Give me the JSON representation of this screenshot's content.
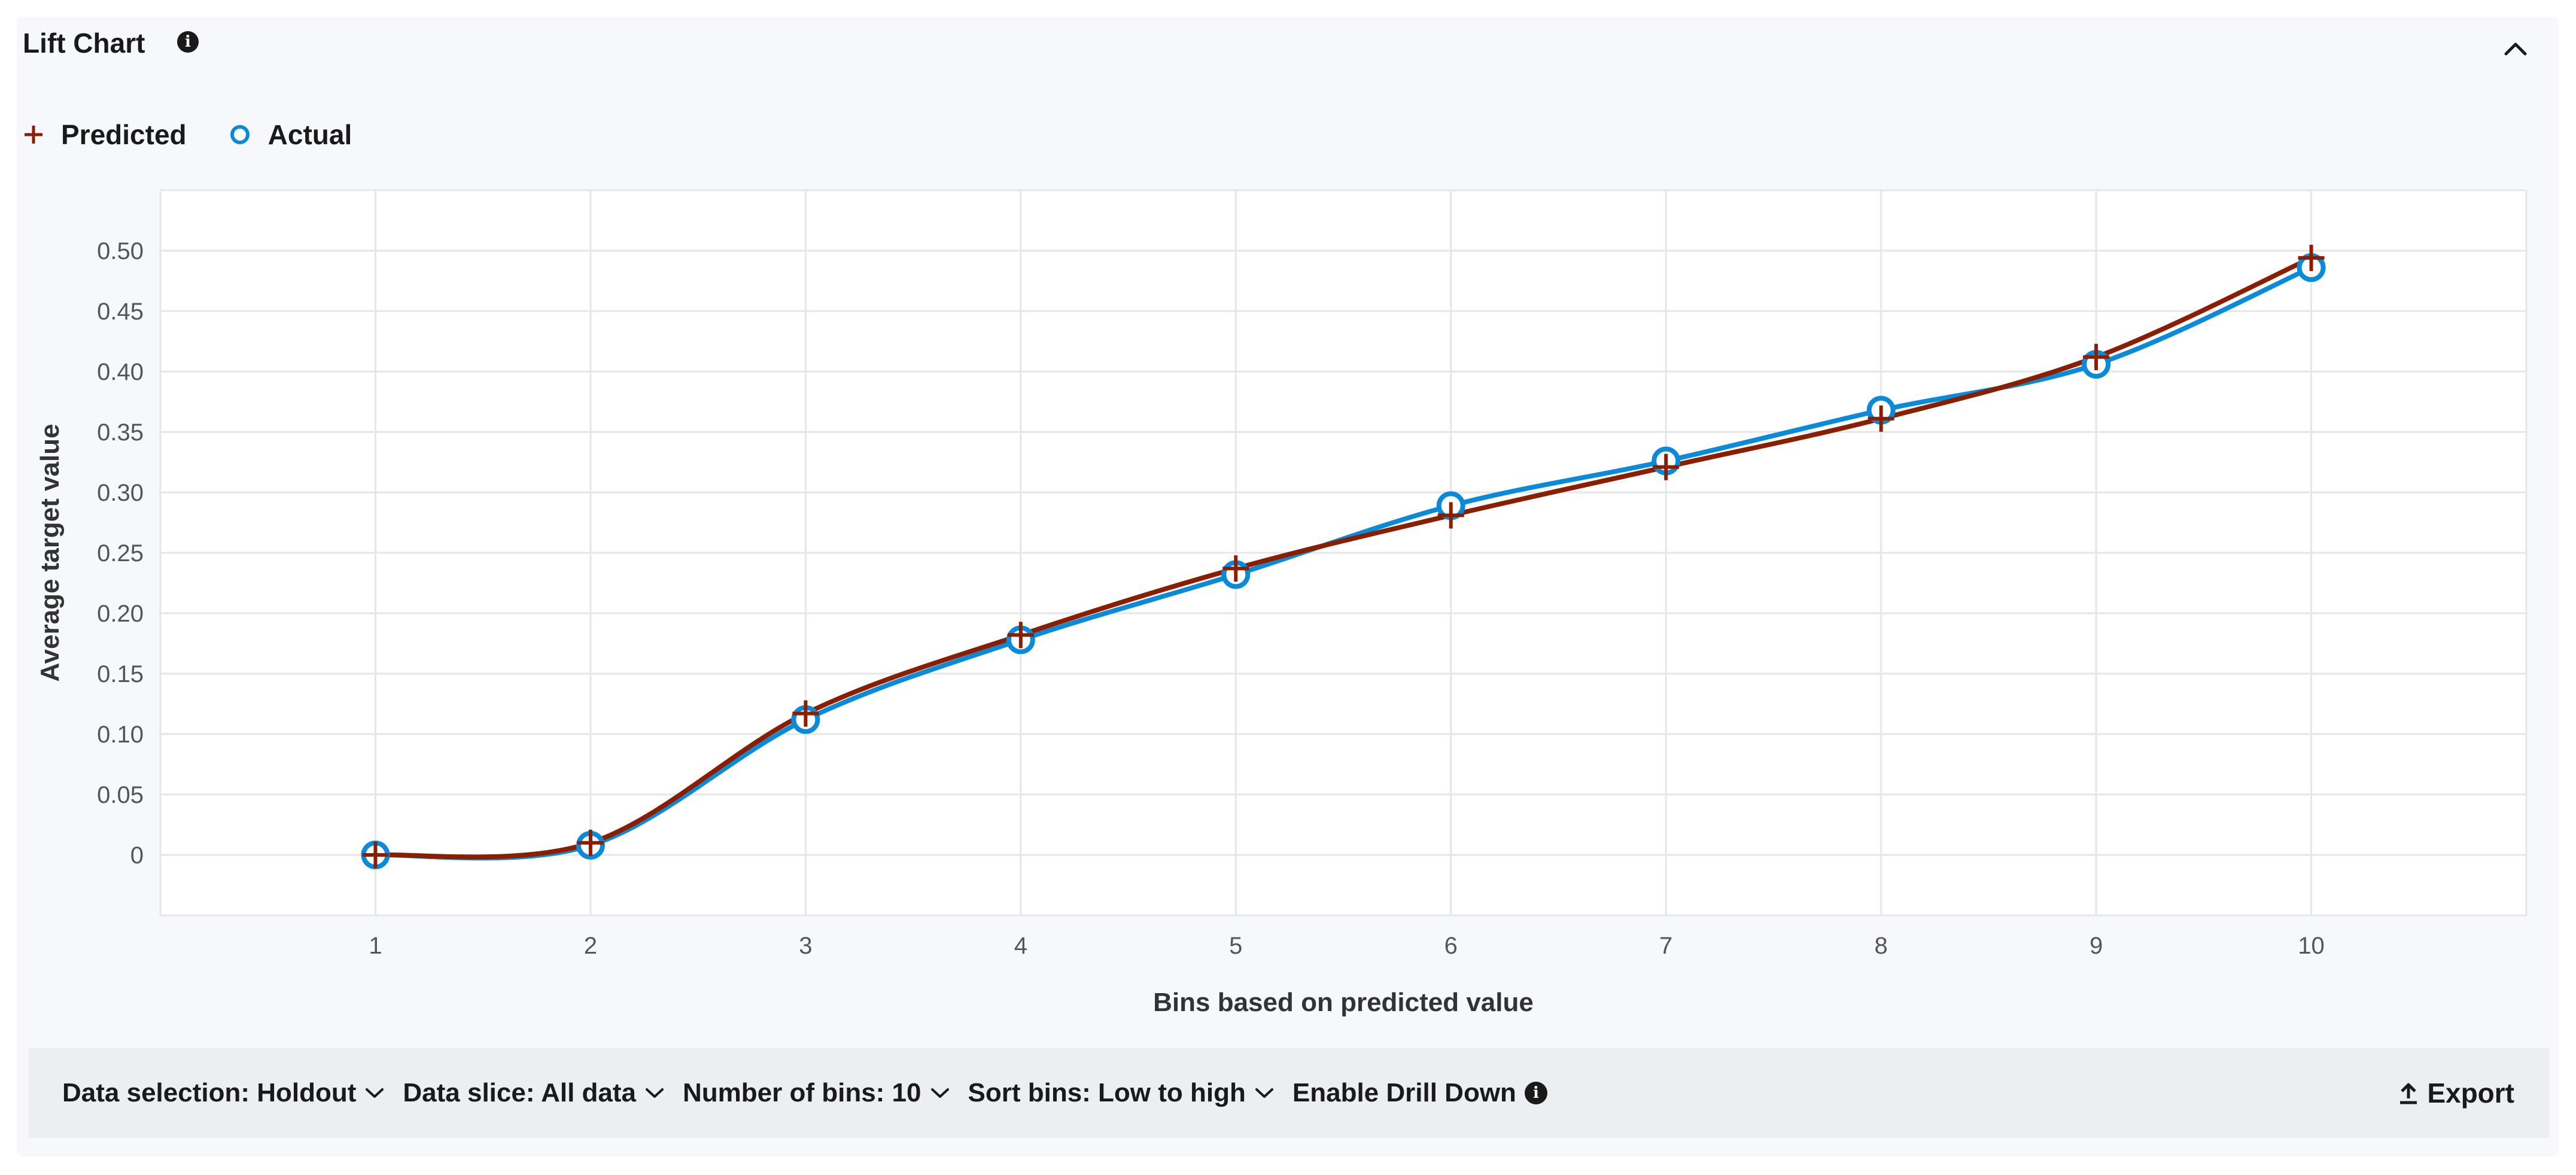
{
  "header": {
    "title": "Lift Chart",
    "info_icon": "info-icon",
    "collapse_icon": "chevron-up-icon"
  },
  "legend": [
    {
      "label": "Predicted",
      "marker": "plus",
      "color": "#8a1e00"
    },
    {
      "label": "Actual",
      "marker": "circle",
      "color": "#0a8ad8"
    }
  ],
  "toolbar": {
    "data_selection": "Data selection: Holdout",
    "data_slice": "Data slice: All data",
    "num_bins": "Number of bins: 10",
    "sort_bins": "Sort bins: Low to high",
    "drill_down": "Enable Drill Down",
    "export": "Export"
  },
  "chart_data": {
    "type": "line",
    "title": "",
    "xlabel": "Bins based on predicted value",
    "ylabel": "Average target value",
    "x": [
      1,
      2,
      3,
      4,
      5,
      6,
      7,
      8,
      9,
      10
    ],
    "yticks": [
      "0",
      "0.05",
      "0.10",
      "0.15",
      "0.20",
      "0.25",
      "0.30",
      "0.35",
      "0.40",
      "0.45",
      "0.50"
    ],
    "ylim": [
      -0.05,
      0.55
    ],
    "xlim": [
      0,
      11
    ],
    "grid": true,
    "legend_position": "top-left",
    "series": [
      {
        "name": "Predicted",
        "color": "#8a1e00",
        "marker": "plus",
        "values": [
          0.0,
          0.01,
          0.117,
          0.182,
          0.237,
          0.281,
          0.321,
          0.361,
          0.412,
          0.494
        ]
      },
      {
        "name": "Actual",
        "color": "#0a8ad8",
        "marker": "circle",
        "values": [
          0.0,
          0.008,
          0.112,
          0.178,
          0.232,
          0.289,
          0.326,
          0.368,
          0.406,
          0.486
        ]
      }
    ]
  }
}
